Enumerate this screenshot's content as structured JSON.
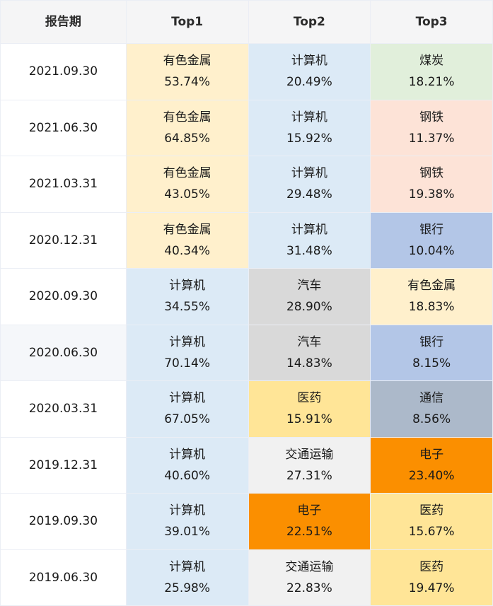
{
  "table": {
    "headers": [
      "报告期",
      "Top1",
      "Top2",
      "Top3"
    ],
    "rows": [
      {
        "date": "2021.09.30",
        "cells": [
          {
            "industry": "有色金属",
            "pct": "53.74%",
            "color": "#fff0cc"
          },
          {
            "industry": "计算机",
            "pct": "20.49%",
            "color": "#dceaf6"
          },
          {
            "industry": "煤炭",
            "pct": "18.21%",
            "color": "#e1efdb"
          }
        ]
      },
      {
        "date": "2021.06.30",
        "cells": [
          {
            "industry": "有色金属",
            "pct": "64.85%",
            "color": "#fff0cc"
          },
          {
            "industry": "计算机",
            "pct": "15.92%",
            "color": "#dceaf6"
          },
          {
            "industry": "钢铁",
            "pct": "11.37%",
            "color": "#fde3d7"
          }
        ]
      },
      {
        "date": "2021.03.31",
        "cells": [
          {
            "industry": "有色金属",
            "pct": "43.05%",
            "color": "#fff0cc"
          },
          {
            "industry": "计算机",
            "pct": "29.48%",
            "color": "#dceaf6"
          },
          {
            "industry": "钢铁",
            "pct": "19.38%",
            "color": "#fde3d7"
          }
        ]
      },
      {
        "date": "2020.12.31",
        "cells": [
          {
            "industry": "有色金属",
            "pct": "40.34%",
            "color": "#fff0cc"
          },
          {
            "industry": "计算机",
            "pct": "31.48%",
            "color": "#dceaf6"
          },
          {
            "industry": "银行",
            "pct": "10.04%",
            "color": "#b3c6e7"
          }
        ]
      },
      {
        "date": "2020.09.30",
        "cells": [
          {
            "industry": "计算机",
            "pct": "34.55%",
            "color": "#dceaf6"
          },
          {
            "industry": "汽车",
            "pct": "28.90%",
            "color": "#d9d9d9"
          },
          {
            "industry": "有色金属",
            "pct": "18.83%",
            "color": "#fff0cc"
          }
        ]
      },
      {
        "date": "2020.06.30",
        "cells": [
          {
            "industry": "计算机",
            "pct": "70.14%",
            "color": "#dceaf6"
          },
          {
            "industry": "汽车",
            "pct": "14.83%",
            "color": "#d9d9d9"
          },
          {
            "industry": "银行",
            "pct": "8.15%",
            "color": "#b3c6e7"
          }
        ]
      },
      {
        "date": "2020.03.31",
        "cells": [
          {
            "industry": "计算机",
            "pct": "67.05%",
            "color": "#dceaf6"
          },
          {
            "industry": "医药",
            "pct": "15.91%",
            "color": "#ffe597"
          },
          {
            "industry": "通信",
            "pct": "8.56%",
            "color": "#acb9ca"
          }
        ]
      },
      {
        "date": "2019.12.31",
        "cells": [
          {
            "industry": "计算机",
            "pct": "40.60%",
            "color": "#dceaf6"
          },
          {
            "industry": "交通运输",
            "pct": "27.31%",
            "color": "#f1f1f1"
          },
          {
            "industry": "电子",
            "pct": "23.40%",
            "color": "#fb8f00"
          }
        ]
      },
      {
        "date": "2019.09.30",
        "cells": [
          {
            "industry": "计算机",
            "pct": "39.01%",
            "color": "#dceaf6"
          },
          {
            "industry": "电子",
            "pct": "22.51%",
            "color": "#fb8f00"
          },
          {
            "industry": "医药",
            "pct": "15.67%",
            "color": "#ffe597"
          }
        ]
      },
      {
        "date": "2019.06.30",
        "cells": [
          {
            "industry": "计算机",
            "pct": "25.98%",
            "color": "#dceaf6"
          },
          {
            "industry": "交通运输",
            "pct": "22.83%",
            "color": "#f1f1f1"
          },
          {
            "industry": "医药",
            "pct": "19.47%",
            "color": "#ffe597"
          }
        ]
      }
    ],
    "highlighted_row_index": 5,
    "colors": {
      "header_bg": "#f5f5f6",
      "border": "#ebeef5",
      "highlight_row_bg": "#f5f7fa"
    }
  }
}
